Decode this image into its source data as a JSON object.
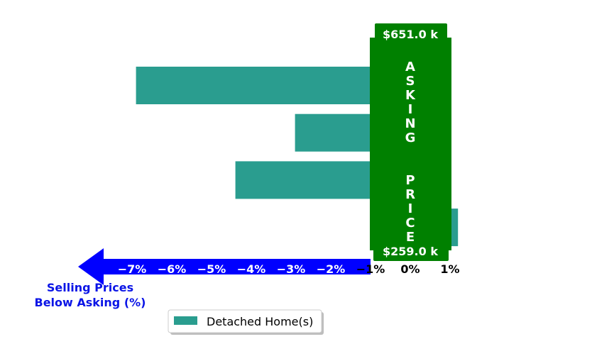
{
  "chart_data": {
    "type": "bar",
    "orientation": "horizontal",
    "series": [
      {
        "name": "Detached Home(s)",
        "values": [
          -6.9,
          -2.9,
          -4.4,
          1.2
        ]
      }
    ],
    "x_ticks": [
      {
        "value": -7,
        "label": "−7%"
      },
      {
        "value": -6,
        "label": "−6%"
      },
      {
        "value": -5,
        "label": "−5%"
      },
      {
        "value": -4,
        "label": "−4%"
      },
      {
        "value": -3,
        "label": "−3%"
      },
      {
        "value": -2,
        "label": "−2%"
      },
      {
        "value": -1,
        "label": "−1%"
      },
      {
        "value": 0,
        "label": "0%"
      },
      {
        "value": 1,
        "label": "1%"
      }
    ],
    "xlabel_lines": [
      "Selling Prices",
      "Below Asking (%)"
    ],
    "xlim": [
      -7.9,
      1.3
    ],
    "asking_band": {
      "from": -1,
      "to": 1,
      "top_label": "$651.0 k",
      "bottom_label": "$259.0 k",
      "vertical_text": "ASKING  PRICE"
    },
    "legend": {
      "placement": "bottom-center",
      "entries": [
        "Detached Home(s)"
      ]
    },
    "grid": false,
    "colors": {
      "bar": "#2a9d8f",
      "band": "#008000",
      "arrow": "#0000ff",
      "xlabel": "#0a14e6"
    }
  }
}
